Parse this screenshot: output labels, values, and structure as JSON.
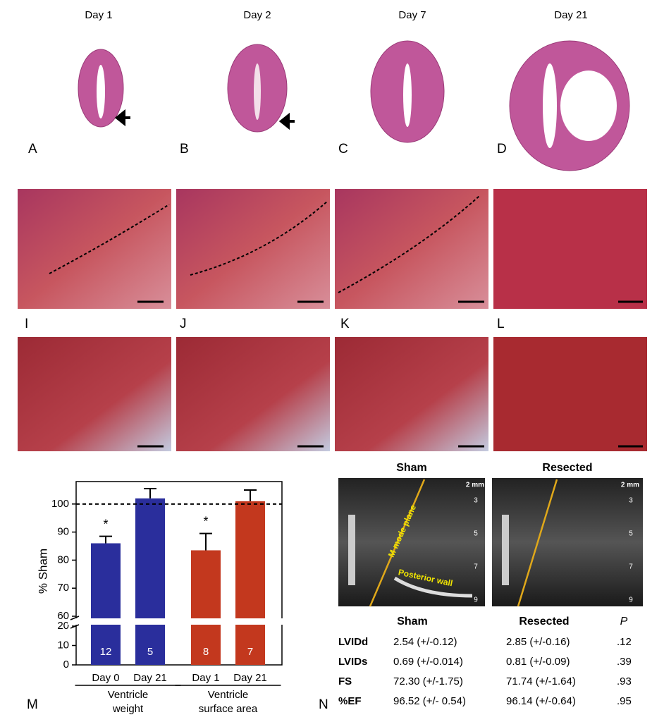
{
  "day_labels": [
    "Day 1",
    "Day 2",
    "Day 7",
    "Day 21"
  ],
  "panel_labels": {
    "top": [
      "A",
      "B",
      "C",
      "D"
    ],
    "middle": [
      "I",
      "J",
      "K",
      "L"
    ],
    "chart": "M",
    "table": "N"
  },
  "chart_data": {
    "type": "bar",
    "y_label": "% Sham",
    "categories": [
      "Day 0",
      "Day 21",
      "Day 1",
      "Day 21"
    ],
    "groups": [
      "Ventricle weight",
      "Ventricle surface area"
    ],
    "values": [
      86,
      102,
      83.5,
      101
    ],
    "errors": [
      2.5,
      3.5,
      6,
      4
    ],
    "colors": [
      "#2a2e9c",
      "#2a2e9c",
      "#c3381e",
      "#c3381e"
    ],
    "n": [
      12,
      5,
      8,
      7
    ],
    "annotations": [
      "*",
      null,
      "*",
      null
    ],
    "ylim": [
      0,
      108
    ],
    "axis_break": [
      20,
      60
    ],
    "yticks": [
      0,
      10,
      20,
      60,
      70,
      80,
      90,
      100
    ],
    "reference_line": 100
  },
  "echo": {
    "titles": [
      "Sham",
      "Resected"
    ],
    "scale": "2 mm",
    "depth_ticks": [
      3,
      5,
      7,
      9
    ],
    "plane_label": "M mode plane",
    "wall_label": "Posterior wall"
  },
  "table": {
    "header": [
      "Sham",
      "Resected",
      "P"
    ],
    "rows": [
      [
        "LVIDd",
        "2.54 (+/-0.12)",
        "2.85 (+/-0.16)",
        ".12"
      ],
      [
        "LVIDs",
        "0.69 (+/-0.014)",
        "0.81 (+/-0.09)",
        ".39"
      ],
      [
        "FS",
        "72.30 (+/-1.75)",
        "71.74 (+/-1.64)",
        ".93"
      ],
      [
        "%EF",
        "96.52 (+/- 0.54)",
        "96.14 (+/-0.64)",
        ".95"
      ]
    ]
  }
}
